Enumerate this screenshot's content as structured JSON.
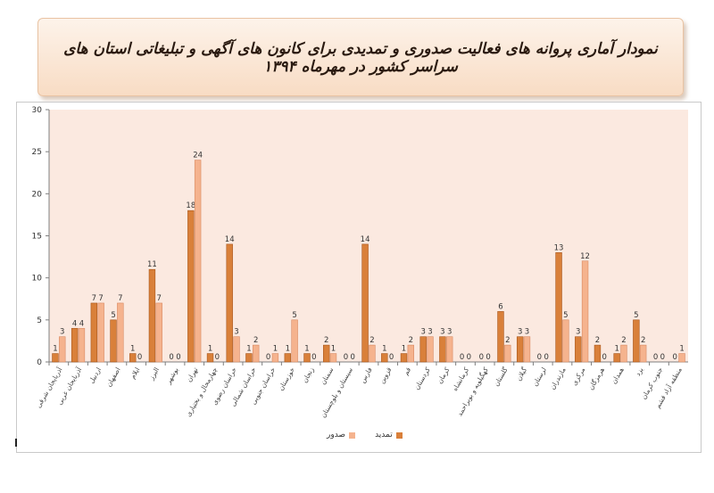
{
  "header": {
    "title": "نمودار آماری پروانه های فعالیت صدوری و تمدیدی برای کانون های آگهی و تبلیغاتی استان های سراسر کشور در مهرماه ۱۳۹۴"
  },
  "colors": {
    "tamdid": "#d9803a",
    "sodour": "#f5b38e",
    "plot_bg": "#fbe9e0",
    "tamdid_edge": "#a8561c",
    "sodour_edge": "#d98a63"
  },
  "legend": [
    {
      "key": "tamdid",
      "label": "تمدید"
    },
    {
      "key": "sodour",
      "label": "صدور"
    }
  ],
  "chart_data": {
    "type": "bar",
    "title": "",
    "xlabel": "",
    "ylabel": "",
    "ylim": [
      0,
      30
    ],
    "yticks": [
      0,
      5,
      10,
      15,
      20,
      25,
      30
    ],
    "grid": false,
    "legend_position": "bottom",
    "categories": [
      "آذربایجان شرقی",
      "آذربایجان غربی",
      "اردبیل",
      "اصفهان",
      "ایلام",
      "البرز",
      "بوشهر",
      "تهران",
      "چهارمحال و بختیاری",
      "خراسان رضوی",
      "خراسان شمالی",
      "خراسان جنوبی",
      "خوزستان",
      "زنجان",
      "سمنان",
      "سیستان و بلوچستان",
      "فارس",
      "قزوین",
      "قم",
      "کردستان",
      "کرمان",
      "کرمانشاه",
      "کهگیلویه و بویراحمد",
      "گلستان",
      "گیلان",
      "لرستان",
      "مازندران",
      "مرکزی",
      "هرمزگان",
      "همدان",
      "یزد",
      "جنوب کرمان",
      "منطقه آزاد قشم"
    ],
    "series": [
      {
        "name": "تمدید",
        "values": [
          1,
          4,
          7,
          5,
          1,
          11,
          0,
          18,
          1,
          14,
          1,
          0,
          1,
          1,
          2,
          0,
          14,
          1,
          1,
          3,
          3,
          0,
          0,
          6,
          3,
          0,
          13,
          3,
          2,
          1,
          5,
          0,
          0
        ]
      },
      {
        "name": "صدور",
        "values": [
          3,
          4,
          7,
          7,
          0,
          7,
          0,
          24,
          0,
          3,
          2,
          1,
          5,
          0,
          1,
          0,
          2,
          0,
          2,
          3,
          3,
          0,
          0,
          2,
          3,
          0,
          5,
          12,
          0,
          2,
          2,
          0,
          1
        ]
      }
    ]
  }
}
